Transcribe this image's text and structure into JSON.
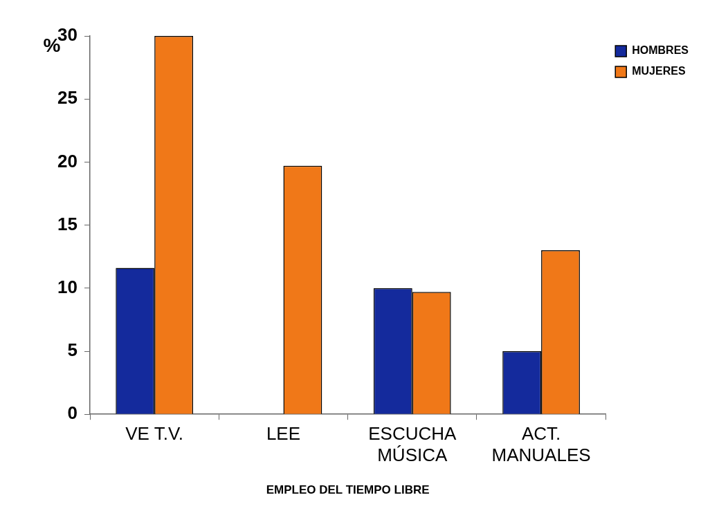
{
  "chart_data": {
    "type": "bar",
    "xlabel": "EMPLEO DEL TIEMPO LIBRE",
    "ylabel": "%",
    "categories": [
      "VE T.V.",
      "LEE",
      "ESCUCHA MÚSICA",
      "ACT. MANUALES"
    ],
    "series": [
      {
        "name": "HOMBRES",
        "color": "#142a9c",
        "values": [
          11.6,
          0,
          10,
          5
        ]
      },
      {
        "name": "MUJERES",
        "color": "#f07818",
        "values": [
          30,
          19.7,
          9.7,
          13
        ]
      }
    ],
    "ylim": [
      0,
      30
    ],
    "yticks": [
      0,
      5,
      10,
      15,
      20,
      25,
      30
    ],
    "grid": false,
    "legend": "top right"
  }
}
